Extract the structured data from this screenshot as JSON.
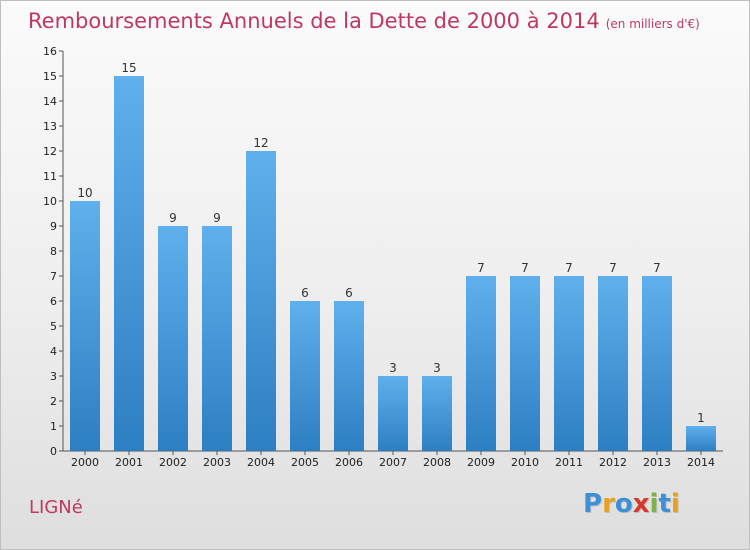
{
  "title": "Remboursements Annuels de la Dette de 2000 à 2014",
  "title_unit": "(en milliers d'€)",
  "place": "LIGNé",
  "logo": {
    "letters": [
      "P",
      "r",
      "o",
      "x",
      "i",
      "t",
      "i"
    ],
    "colors": [
      "#3d8fd6",
      "#e8a020",
      "#3d8fd6",
      "#d43b2f",
      "#7cb342",
      "#3d8fd6",
      "#e8a020"
    ]
  },
  "colors": {
    "bar_top": "#5fb0ec",
    "bar_bottom": "#2d7fc3",
    "title": "#c0385f"
  },
  "chart_data": {
    "type": "bar",
    "title": "Remboursements Annuels de la Dette de 2000 à 2014",
    "categories": [
      "2000",
      "2001",
      "2002",
      "2003",
      "2004",
      "2005",
      "2006",
      "2007",
      "2008",
      "2009",
      "2010",
      "2011",
      "2012",
      "2013",
      "2014"
    ],
    "values": [
      10,
      15,
      9,
      9,
      12,
      6,
      6,
      3,
      3,
      7,
      7,
      7,
      7,
      7,
      1
    ],
    "data_labels": [
      "10",
      "15",
      "9",
      "9",
      "12",
      "6",
      "6",
      "3",
      "3",
      "7",
      "7",
      "7",
      "7",
      "7",
      "1"
    ],
    "yticks": [
      "0",
      "1",
      "2",
      "3",
      "4",
      "5",
      "6",
      "7",
      "8",
      "9",
      "10",
      "11",
      "12",
      "13",
      "14",
      "15",
      "16"
    ],
    "ylim": [
      0,
      16
    ],
    "grid": false
  }
}
